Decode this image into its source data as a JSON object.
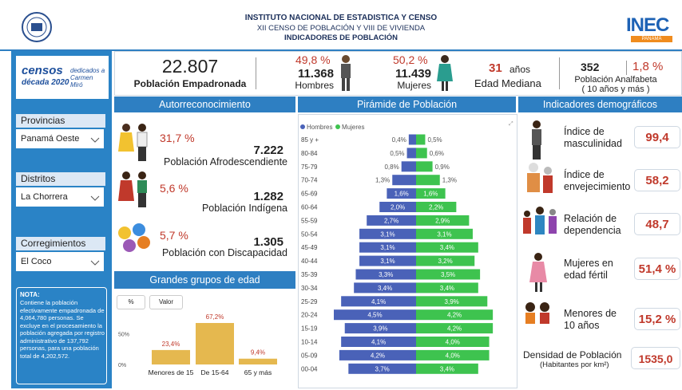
{
  "header": {
    "title": "INSTITUTO NACIONAL DE ESTADISTICA Y CENSO",
    "subtitle": "XII CENSO DE POBLACIÓN Y VIII DE VIVIENDA",
    "heading": "INDICADORES DE POBLACIÓN",
    "logo": "INEC",
    "logo_sub": "PANAMÁ"
  },
  "sidebar": {
    "logo": {
      "name": "censos",
      "tagline": "década 2020",
      "dedication": "dedicados a Carmen Miró"
    },
    "filters": [
      {
        "label": "Provincias",
        "value": "Panamá Oeste"
      },
      {
        "label": "Distritos",
        "value": "La Chorrera"
      },
      {
        "label": "Corregimientos",
        "value": "El Coco"
      }
    ],
    "note_title": "NOTA:",
    "note": "Contiene la población efectivamente empadronada de 4,064,780 personas. Se excluye en el procesamiento la población agregada por registro administrativo de 137,792 personas, para una población total de 4,202,572."
  },
  "kpis": {
    "total": {
      "value": "22.807",
      "label": "Población Empadronada"
    },
    "men": {
      "percent": "49,8 %",
      "value": "11.368",
      "label": "Hombres"
    },
    "women": {
      "percent": "50,2 %",
      "value": "11.439",
      "label": "Mujeres"
    },
    "median_age": {
      "value": "31",
      "unit": "años",
      "label": "Edad Mediana"
    },
    "illiterate": {
      "value": "352",
      "percent": "1,8 %",
      "label": "Población Analfabeta",
      "sublabel": "( 10 años y más )"
    }
  },
  "autorreconocimiento": {
    "title": "Autorreconocimiento",
    "items": [
      {
        "percent": "31,7 %",
        "count": "7.222",
        "label": "Población Afrodescendiente"
      },
      {
        "percent": "5,6 %",
        "count": "1.282",
        "label": "Población Indígena"
      },
      {
        "percent": "5,7 %",
        "count": "1.305",
        "label": "Población con Discapacidad"
      }
    ]
  },
  "indicadores": {
    "title": "Indicadores demográficos",
    "items": [
      {
        "label": "Índice de masculinidad",
        "value": "99,4"
      },
      {
        "label": "Índice de envejecimiento",
        "value": "58,2"
      },
      {
        "label": "Relación de dependencia",
        "value": "48,7"
      },
      {
        "label": "Mujeres en edad fértil",
        "value": "51,4 %"
      },
      {
        "label": "Menores de 10 años",
        "value": "15,2 %"
      }
    ],
    "density": {
      "label": "Densidad de Población",
      "sublabel": "(Habitantes por km²)",
      "value": "1535,0"
    }
  },
  "chart_data": [
    {
      "type": "pyramid",
      "title": "Pirámide de Población",
      "categories": [
        "85 y +",
        "80-84",
        "75-79",
        "70-74",
        "65-69",
        "60-64",
        "55-59",
        "50-54",
        "45-49",
        "40-44",
        "35-39",
        "30-34",
        "25-29",
        "20-24",
        "15-19",
        "10-14",
        "05-09",
        "00-04"
      ],
      "series": [
        {
          "name": "Hombres",
          "color": "#4a62b8",
          "values": [
            0.4,
            0.5,
            0.8,
            1.3,
            1.6,
            2.0,
            2.7,
            3.1,
            3.1,
            3.1,
            3.3,
            3.4,
            4.1,
            4.5,
            3.9,
            4.1,
            4.2,
            3.7
          ],
          "value_labels": [
            "0,4%",
            "0,5%",
            "0,8%",
            "1,3%",
            "1,6%",
            "2,0%",
            "2,7%",
            "3,1%",
            "3,1%",
            "3,1%",
            "3,3%",
            "3,4%",
            "4,1%",
            "4,5%",
            "3,9%",
            "4,1%",
            "4,2%",
            "3,7%"
          ]
        },
        {
          "name": "Mujeres",
          "color": "#3ec34f",
          "values": [
            0.5,
            0.6,
            0.9,
            1.3,
            1.6,
            2.2,
            2.9,
            3.1,
            3.4,
            3.2,
            3.5,
            3.4,
            3.9,
            4.2,
            4.2,
            4.0,
            4.0,
            3.4
          ],
          "value_labels": [
            "0,5%",
            "0,6%",
            "0,9%",
            "1,3%",
            "1,6%",
            "2,2%",
            "2,9%",
            "3,1%",
            "3,4%",
            "3,2%",
            "3,5%",
            "3,4%",
            "3,9%",
            "4,2%",
            "4,2%",
            "4,0%",
            "4,0%",
            "3,4%"
          ]
        }
      ]
    },
    {
      "type": "bar",
      "title": "Grandes grupos de edad",
      "buttons": [
        "%",
        "Valor"
      ],
      "categories": [
        "Menores de 15",
        "De 15-64",
        "65 y más"
      ],
      "values": [
        23.4,
        67.2,
        9.4
      ],
      "value_labels": [
        "23,4%",
        "67,2%",
        "9,4%"
      ],
      "color": "#e5b84f",
      "ylim": [
        0,
        70
      ],
      "yticks": [
        {
          "value": 0,
          "label": "0%"
        },
        {
          "value": 50,
          "label": "50%"
        }
      ]
    }
  ]
}
